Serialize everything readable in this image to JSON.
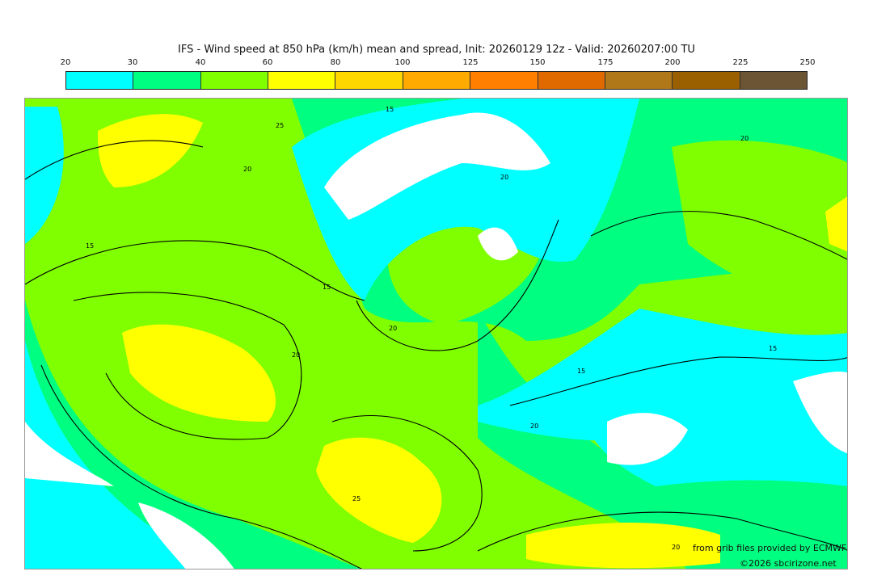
{
  "title": "IFS - Wind speed at 850 hPa (km/h) mean and spread, Init: 20260129 12z - Valid: 20260207:00 TU",
  "colorbar": {
    "ticks": [
      "20",
      "30",
      "40",
      "60",
      "80",
      "100",
      "125",
      "150",
      "175",
      "200",
      "225",
      "250"
    ],
    "colors": [
      "#00ffff",
      "#00ff80",
      "#80ff00",
      "#ffff00",
      "#ffd700",
      "#ffaa00",
      "#ff8000",
      "#e06a00",
      "#b07818",
      "#9a6000",
      "#6b5535"
    ]
  },
  "map": {
    "contour_labels": [
      "15",
      "20",
      "25",
      "20",
      "15",
      "15",
      "20",
      "25",
      "20",
      "15",
      "20",
      "15",
      "20",
      "20"
    ],
    "colors": {
      "low": "#ffffff",
      "cyan": "#00ffff",
      "green": "#00ff80",
      "lime": "#80ff00",
      "yellow": "#ffff00",
      "contour": "#000000"
    }
  },
  "credits": {
    "source": "from grib files provided by ECMWF",
    "copyright": "©2026 sbcirizone.net"
  }
}
